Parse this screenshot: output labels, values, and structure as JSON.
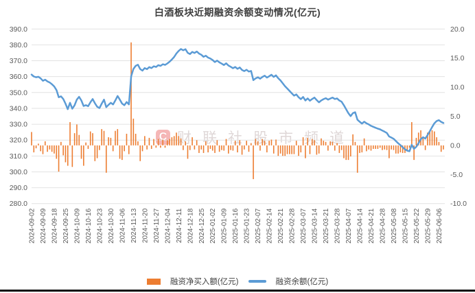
{
  "title": "白酒板块近期融资余额变动情况(亿元)",
  "watermark": {
    "logo_letter": "C",
    "text": "财联社股市频道"
  },
  "legend": {
    "bar_label": "融资净买入额(亿元)",
    "line_label": "融资余额(亿元)"
  },
  "chart_data": {
    "type": "combo-bar-line",
    "title": "白酒板块近期融资余额变动情况(亿元)",
    "grid": true,
    "legend_position": "bottom",
    "points_per_label": 5,
    "axis_left": {
      "min": 280,
      "max": 390,
      "step": 10,
      "format": "one-decimal"
    },
    "axis_right": {
      "min": -10,
      "max": 20,
      "step": 5,
      "format": "one-decimal"
    },
    "x_labels": [
      "2024-09-02",
      "2024-09-09",
      "2024-09-18",
      "2024-09-25",
      "2024-10-09",
      "2024-10-16",
      "2024-10-23",
      "2024-10-30",
      "2024-11-06",
      "2024-11-13",
      "2024-11-20",
      "2024-11-27",
      "2024-12-04",
      "2024-12-11",
      "2024-12-18",
      "2024-12-25",
      "2025-01-02",
      "2025-01-09",
      "2025-01-16",
      "2025-01-23",
      "2025-02-07",
      "2025-02-14",
      "2025-02-21",
      "2025-02-28",
      "2025-03-07",
      "2025-03-14",
      "2025-03-21",
      "2025-03-28",
      "2025-04-07",
      "2025-04-14",
      "2025-04-21",
      "2025-04-28",
      "2025-05-08",
      "2025-05-15",
      "2025-05-22",
      "2025-05-29",
      "2025-06-06"
    ],
    "series": [
      {
        "name": "融资净买入额(亿元)",
        "type": "bar",
        "axis": "right",
        "color": "#ED7D31",
        "values": [
          2.3,
          -1.2,
          -0.5,
          0.3,
          -1.0,
          -1.5,
          0.7,
          -1.1,
          -0.7,
          -1.1,
          -1.4,
          -2.3,
          -4.5,
          0.6,
          -1.7,
          -2.9,
          -3.5,
          4.0,
          -3.7,
          2.1,
          3.6,
          1.8,
          -2.3,
          -3.5,
          0.5,
          -0.6,
          2.4,
          2.1,
          -2.7,
          -2.2,
          -0.8,
          2.8,
          2.5,
          -4.7,
          1.4,
          1.3,
          -1.0,
          2.5,
          2.8,
          -2.3,
          -2.5,
          -1.0,
          2.0,
          -1.5,
          17.7,
          4.6,
          2.0,
          0.7,
          -2.7,
          -1.0,
          1.6,
          -0.7,
          1.3,
          -0.6,
          1.1,
          -0.4,
          1.1,
          -0.4,
          1.0,
          -0.4,
          0.9,
          1.1,
          1.4,
          1.6,
          2.2,
          1.6,
          1.2,
          -0.8,
          0.7,
          -2.3,
          -0.8,
          1.4,
          -0.7,
          0.9,
          -1.3,
          -0.7,
          -1.3,
          0.7,
          -1.2,
          -0.6,
          -0.9,
          -1.3,
          0.9,
          -1.1,
          -0.8,
          -0.9,
          1.1,
          -1.4,
          -0.8,
          -0.9,
          0.8,
          -1.2,
          0.9,
          -1.6,
          -0.7,
          0.8,
          -1.1,
          0.4,
          -5.8,
          1.1,
          0.7,
          -0.9,
          1.1,
          0.8,
          -1.2,
          0.8,
          1.0,
          -1.4,
          1.0,
          -1.8,
          -1.4,
          -1.8,
          -1.8,
          -1.5,
          -1.5,
          -1.5,
          -1.5,
          0.8,
          -1.8,
          -1.2,
          1.4,
          -2.2,
          1.3,
          -1.5,
          1.1,
          0.9,
          -1.6,
          -1.4,
          1.2,
          0.8,
          0.6,
          -0.9,
          0.7,
          0.6,
          -0.9,
          0.4,
          -1.3,
          -0.8,
          -2.2,
          -2.5,
          -2.5,
          -1.9,
          1.9,
          0.6,
          -4.7,
          -1.3,
          -1.2,
          1.2,
          -1.0,
          -0.7,
          -0.9,
          -0.6,
          -0.6,
          -0.6,
          -0.4,
          -0.8,
          -0.7,
          -0.8,
          -2.2,
          -0.7,
          -0.8,
          -1.4,
          -1.4,
          -1.2,
          -1.3,
          -1.3,
          -0.8,
          -0.4,
          4.0,
          -2.5,
          1.3,
          2.2,
          2.6,
          1.2,
          -0.8,
          2.2,
          2.4,
          2.6,
          2.4,
          1.4,
          0.6,
          -1.1,
          -0.7
        ]
      },
      {
        "name": "融资余额(亿元)",
        "type": "line",
        "axis": "left",
        "color": "#5B9BD5",
        "values": [
          361.3,
          360.1,
          359.6,
          359.9,
          358.9,
          357.4,
          358.1,
          357.0,
          356.3,
          355.2,
          353.8,
          351.5,
          347.0,
          347.6,
          345.9,
          343.0,
          339.5,
          343.5,
          339.8,
          341.9,
          345.5,
          347.3,
          345.0,
          341.5,
          342.0,
          341.4,
          343.8,
          345.9,
          343.2,
          341.0,
          340.2,
          343.0,
          345.5,
          340.8,
          342.2,
          343.5,
          342.5,
          345.0,
          347.8,
          345.5,
          343.0,
          342.0,
          344.0,
          342.5,
          360.2,
          364.8,
          366.8,
          367.5,
          364.8,
          363.8,
          365.4,
          364.7,
          366.0,
          365.4,
          366.5,
          366.1,
          367.2,
          366.8,
          367.8,
          367.4,
          368.3,
          369.4,
          370.8,
          372.4,
          374.6,
          376.2,
          377.4,
          376.6,
          377.3,
          375.0,
          374.2,
          375.6,
          374.9,
          375.8,
          374.5,
          373.8,
          372.5,
          373.2,
          372.0,
          371.4,
          370.5,
          369.2,
          370.1,
          369.0,
          368.2,
          367.3,
          368.4,
          367.0,
          366.2,
          365.3,
          366.1,
          364.9,
          365.8,
          364.2,
          363.5,
          364.3,
          363.2,
          363.6,
          357.8,
          358.9,
          359.6,
          358.7,
          359.8,
          360.6,
          359.4,
          360.2,
          361.2,
          359.8,
          360.8,
          359.0,
          357.6,
          355.8,
          354.0,
          352.5,
          351.0,
          349.5,
          348.0,
          348.8,
          347.0,
          345.8,
          347.2,
          345.0,
          346.3,
          344.8,
          345.9,
          346.8,
          345.2,
          343.8,
          345.0,
          345.8,
          346.4,
          345.5,
          346.2,
          346.8,
          345.9,
          346.3,
          345.0,
          344.2,
          342.0,
          339.5,
          337.0,
          335.1,
          337.0,
          337.6,
          332.9,
          331.6,
          330.4,
          331.6,
          330.6,
          329.9,
          329.0,
          328.4,
          327.8,
          327.2,
          326.8,
          326.0,
          325.3,
          324.5,
          322.3,
          321.6,
          320.8,
          319.4,
          318.0,
          316.8,
          315.5,
          314.2,
          313.4,
          313.0,
          317.0,
          314.5,
          315.8,
          318.0,
          320.6,
          321.8,
          321.0,
          323.2,
          325.6,
          328.2,
          330.6,
          332.0,
          332.6,
          331.5,
          330.8
        ]
      }
    ],
    "style": {
      "grid_color": "#E2E2E2",
      "tick_text_color": "#595959",
      "title_color": "#3f3f3f",
      "background": "#ffffff"
    }
  }
}
